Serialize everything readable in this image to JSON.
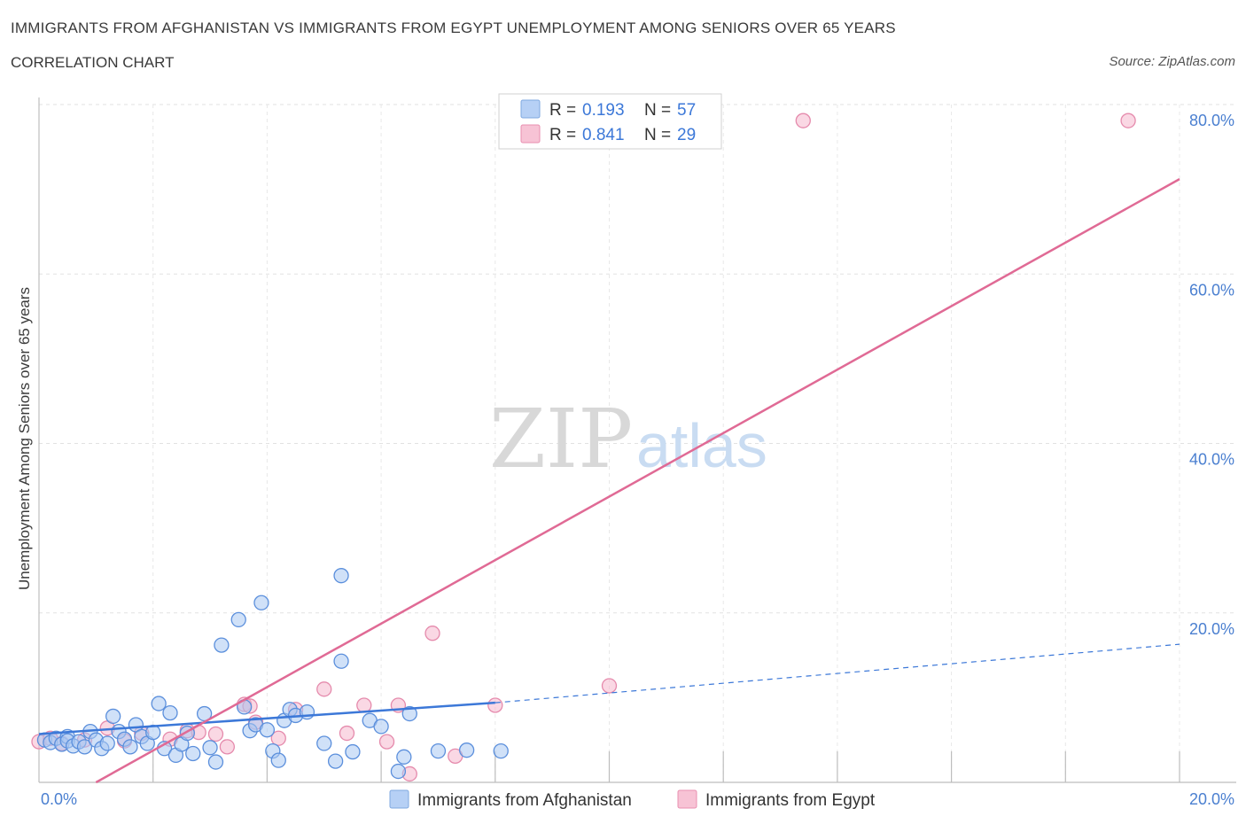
{
  "title": "IMMIGRANTS FROM AFGHANISTAN VS IMMIGRANTS FROM EGYPT UNEMPLOYMENT AMONG SENIORS OVER 65 YEARS",
  "subtitle": "CORRELATION CHART",
  "source": "Source: ZipAtlas.com",
  "watermark": {
    "zip": "ZIP",
    "atlas": "atlas"
  },
  "colors": {
    "blue": "#3c78d8",
    "pink": "#e06a95",
    "blue_fill": "#a9c8f3",
    "pink_fill": "#f6b8ce"
  },
  "legend": {
    "rows": [
      {
        "r_label": "R =",
        "r_value": "0.193",
        "n_label": "N =",
        "n_value": "57"
      },
      {
        "r_label": "R =",
        "r_value": "0.841",
        "n_label": "N =",
        "n_value": "29"
      }
    ]
  },
  "chart_data": {
    "type": "scatter",
    "title": "IMMIGRANTS FROM AFGHANISTAN VS IMMIGRANTS FROM EGYPT UNEMPLOYMENT AMONG SENIORS OVER 65 YEARS",
    "xlabel": "",
    "ylabel": "Unemployment Among Seniors over 65 years",
    "xlim": [
      0,
      20
    ],
    "ylim": [
      0,
      80
    ],
    "x_tick_labels": [
      "0.0%",
      "20.0%"
    ],
    "y_ticks": [
      20,
      40,
      60,
      80
    ],
    "y_tick_labels": [
      "20.0%",
      "40.0%",
      "60.0%",
      "80.0%"
    ],
    "grid": true,
    "series": [
      {
        "name": "Immigrants from Afghanistan",
        "color": "blue",
        "trend": {
          "x0": 0,
          "y0": 5.7,
          "x1": 8.0,
          "y1": 9.4,
          "dash_to_x": 20,
          "dash_to_y": 16.3
        },
        "points": [
          [
            0.1,
            5.0
          ],
          [
            0.2,
            4.7
          ],
          [
            0.3,
            5.2
          ],
          [
            0.4,
            4.5
          ],
          [
            0.5,
            5.4
          ],
          [
            0.5,
            4.9
          ],
          [
            0.6,
            4.3
          ],
          [
            0.7,
            4.8
          ],
          [
            0.8,
            4.2
          ],
          [
            0.9,
            6.0
          ],
          [
            1.0,
            5.0
          ],
          [
            1.1,
            4.0
          ],
          [
            1.2,
            4.6
          ],
          [
            1.3,
            7.8
          ],
          [
            1.4,
            6.0
          ],
          [
            1.5,
            5.1
          ],
          [
            1.6,
            4.2
          ],
          [
            1.7,
            6.8
          ],
          [
            1.8,
            5.4
          ],
          [
            1.9,
            4.6
          ],
          [
            2.0,
            5.9
          ],
          [
            2.1,
            9.3
          ],
          [
            2.2,
            4.0
          ],
          [
            2.3,
            8.2
          ],
          [
            2.4,
            3.2
          ],
          [
            2.5,
            4.5
          ],
          [
            2.6,
            5.8
          ],
          [
            2.7,
            3.4
          ],
          [
            2.9,
            8.1
          ],
          [
            3.0,
            4.1
          ],
          [
            3.1,
            2.4
          ],
          [
            3.2,
            16.2
          ],
          [
            3.5,
            19.2
          ],
          [
            3.6,
            8.9
          ],
          [
            3.7,
            6.1
          ],
          [
            3.8,
            6.8
          ],
          [
            3.9,
            21.2
          ],
          [
            4.0,
            6.2
          ],
          [
            4.1,
            3.7
          ],
          [
            4.2,
            2.6
          ],
          [
            4.3,
            7.3
          ],
          [
            4.4,
            8.6
          ],
          [
            4.5,
            7.9
          ],
          [
            4.7,
            8.3
          ],
          [
            5.0,
            4.6
          ],
          [
            5.2,
            2.5
          ],
          [
            5.3,
            24.4
          ],
          [
            5.3,
            14.3
          ],
          [
            5.5,
            3.6
          ],
          [
            5.8,
            7.3
          ],
          [
            6.0,
            6.6
          ],
          [
            6.3,
            1.3
          ],
          [
            6.4,
            3.0
          ],
          [
            6.5,
            8.1
          ],
          [
            7.0,
            3.7
          ],
          [
            7.5,
            3.8
          ],
          [
            8.1,
            3.7
          ]
        ]
      },
      {
        "name": "Immigrants from Egypt",
        "color": "pink",
        "trend": {
          "x0": 1.0,
          "y0": 0.0,
          "x1": 20,
          "y1": 71.2
        },
        "points": [
          [
            0.0,
            4.8
          ],
          [
            0.2,
            5.2
          ],
          [
            0.4,
            4.6
          ],
          [
            0.8,
            5.0
          ],
          [
            1.2,
            6.4
          ],
          [
            1.5,
            4.9
          ],
          [
            1.8,
            5.8
          ],
          [
            2.3,
            5.1
          ],
          [
            2.6,
            6.1
          ],
          [
            2.8,
            5.9
          ],
          [
            3.1,
            5.7
          ],
          [
            3.3,
            4.2
          ],
          [
            3.6,
            9.2
          ],
          [
            3.7,
            9.0
          ],
          [
            3.8,
            7.1
          ],
          [
            4.2,
            5.2
          ],
          [
            4.5,
            8.6
          ],
          [
            5.0,
            11.0
          ],
          [
            5.4,
            5.8
          ],
          [
            5.7,
            9.1
          ],
          [
            6.1,
            4.8
          ],
          [
            6.3,
            9.1
          ],
          [
            6.5,
            1.0
          ],
          [
            6.9,
            17.6
          ],
          [
            7.3,
            3.1
          ],
          [
            8.0,
            9.1
          ],
          [
            10.0,
            11.4
          ],
          [
            13.4,
            78.1
          ],
          [
            19.1,
            78.1
          ]
        ]
      }
    ]
  }
}
